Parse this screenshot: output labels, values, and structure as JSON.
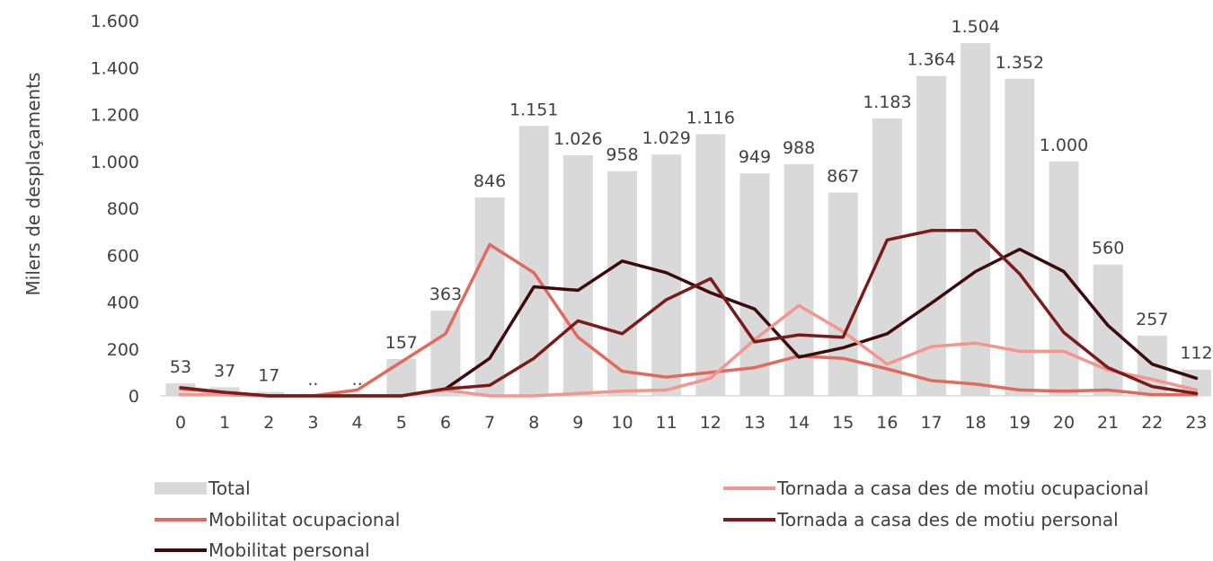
{
  "chart_data": {
    "type": "bar",
    "title": "",
    "ylabel": "Milers de desplaçaments",
    "xlabel": "",
    "categories": [
      "0",
      "1",
      "2",
      "3",
      "4",
      "5",
      "6",
      "7",
      "8",
      "9",
      "10",
      "11",
      "12",
      "13",
      "14",
      "15",
      "16",
      "17",
      "18",
      "19",
      "20",
      "21",
      "22",
      "23"
    ],
    "ylim": [
      0,
      1600
    ],
    "yticks": [
      0,
      200,
      400,
      600,
      800,
      1000,
      1200,
      1400,
      1600
    ],
    "ytick_labels": [
      "0",
      "200",
      "400",
      "600",
      "800",
      "1.000",
      "1.200",
      "1.400",
      "1.600"
    ],
    "grid": false,
    "legend_position": "bottom",
    "total": {
      "name": "Total",
      "color": "#d9d9d9",
      "values": [
        53,
        37,
        17,
        0,
        0,
        157,
        363,
        846,
        1151,
        1026,
        958,
        1029,
        1116,
        949,
        988,
        867,
        1183,
        1364,
        1504,
        1352,
        1000,
        560,
        257,
        112
      ],
      "labels": [
        "53",
        "37",
        "17",
        "..",
        "..",
        "157",
        "363",
        "846",
        "1.151",
        "1.026",
        "958",
        "1.029",
        "1.116",
        "949",
        "988",
        "867",
        "1.183",
        "1.364",
        "1.504",
        "1.352",
        "1.000",
        "560",
        "257",
        "112"
      ]
    },
    "series": [
      {
        "name": "Mobilitat ocupacional",
        "color": "#e06a5e",
        "values": [
          30,
          15,
          0,
          0,
          25,
          145,
          265,
          645,
          525,
          250,
          105,
          80,
          100,
          120,
          170,
          160,
          115,
          65,
          50,
          25,
          20,
          25,
          5,
          5
        ]
      },
      {
        "name": "Mobilitat personal",
        "color": "#3d0a0a",
        "values": [
          5,
          5,
          0,
          0,
          0,
          0,
          30,
          160,
          465,
          450,
          575,
          525,
          440,
          370,
          165,
          205,
          265,
          395,
          530,
          625,
          530,
          300,
          135,
          75
        ]
      },
      {
        "name": "Tornada a casa des de motiu ocupacional",
        "color": "#f2968f",
        "values": [
          5,
          5,
          0,
          0,
          0,
          0,
          25,
          0,
          0,
          10,
          20,
          25,
          75,
          240,
          385,
          275,
          135,
          210,
          225,
          190,
          190,
          110,
          70,
          25
        ]
      },
      {
        "name": "Tornada a casa des de motiu personal",
        "color": "#7a1a1a",
        "values": [
          35,
          15,
          0,
          0,
          0,
          0,
          30,
          45,
          160,
          320,
          265,
          410,
          500,
          230,
          260,
          250,
          665,
          705,
          705,
          520,
          270,
          120,
          40,
          10
        ]
      }
    ]
  }
}
